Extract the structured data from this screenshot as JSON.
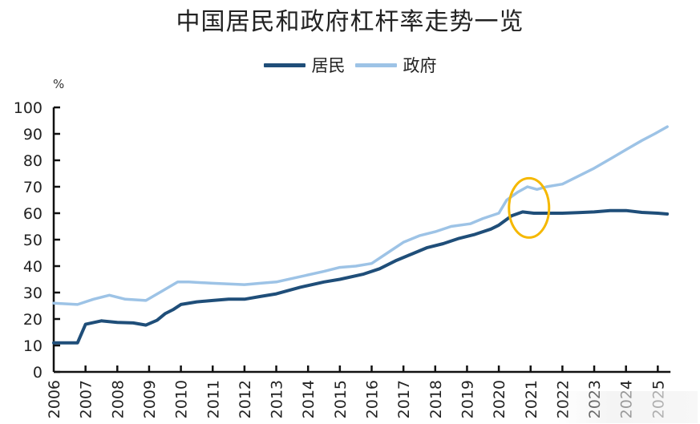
{
  "chart_data": {
    "type": "line",
    "title": "中国居民和政府杠杆率走势一览",
    "xlabel": "",
    "ylabel": "%",
    "ylim": [
      0,
      100
    ],
    "yticks": [
      0,
      10,
      20,
      30,
      40,
      50,
      60,
      70,
      80,
      90,
      100
    ],
    "xlim": [
      2006,
      2025.4
    ],
    "xticks": [
      "2006",
      "2007",
      "2008",
      "2009",
      "2010",
      "2011",
      "2012",
      "2013",
      "2014",
      "2015",
      "2016",
      "2017",
      "2018",
      "2019",
      "2020",
      "2021",
      "2022",
      "2023",
      "2024",
      "2025"
    ],
    "grid": false,
    "legend_position": "top-center",
    "series": [
      {
        "name": "居民",
        "color": "#1f4e79",
        "points": [
          [
            2006.0,
            11.0
          ],
          [
            2006.75,
            11.0
          ],
          [
            2007.0,
            18.0
          ],
          [
            2007.5,
            19.3
          ],
          [
            2008.0,
            18.7
          ],
          [
            2008.5,
            18.5
          ],
          [
            2008.9,
            17.7
          ],
          [
            2009.25,
            19.5
          ],
          [
            2009.5,
            22.0
          ],
          [
            2009.75,
            23.5
          ],
          [
            2010.0,
            25.5
          ],
          [
            2010.5,
            26.5
          ],
          [
            2011.0,
            27.0
          ],
          [
            2011.5,
            27.5
          ],
          [
            2012.0,
            27.5
          ],
          [
            2012.5,
            28.5
          ],
          [
            2013.0,
            29.5
          ],
          [
            2013.75,
            32.0
          ],
          [
            2014.5,
            34.0
          ],
          [
            2015.0,
            35.0
          ],
          [
            2015.75,
            37.0
          ],
          [
            2016.25,
            39.0
          ],
          [
            2016.75,
            42.0
          ],
          [
            2017.25,
            44.5
          ],
          [
            2017.75,
            47.0
          ],
          [
            2018.25,
            48.5
          ],
          [
            2018.75,
            50.5
          ],
          [
            2019.25,
            52.0
          ],
          [
            2019.75,
            54.0
          ],
          [
            2020.0,
            55.5
          ],
          [
            2020.4,
            59.0
          ],
          [
            2020.75,
            60.5
          ],
          [
            2021.1,
            60.0
          ],
          [
            2021.5,
            60.0
          ],
          [
            2022.0,
            60.0
          ],
          [
            2022.5,
            60.2
          ],
          [
            2023.0,
            60.5
          ],
          [
            2023.5,
            61.0
          ],
          [
            2024.0,
            61.0
          ],
          [
            2024.5,
            60.3
          ],
          [
            2025.0,
            60.0
          ],
          [
            2025.3,
            59.7
          ]
        ]
      },
      {
        "name": "政府",
        "color": "#9dc3e6",
        "points": [
          [
            2006.0,
            26.0
          ],
          [
            2006.75,
            25.5
          ],
          [
            2007.25,
            27.5
          ],
          [
            2007.75,
            29.0
          ],
          [
            2008.25,
            27.5
          ],
          [
            2008.9,
            27.0
          ],
          [
            2009.4,
            30.5
          ],
          [
            2009.9,
            34.0
          ],
          [
            2010.25,
            34.0
          ],
          [
            2011.0,
            33.5
          ],
          [
            2012.0,
            33.0
          ],
          [
            2012.5,
            33.5
          ],
          [
            2013.0,
            34.0
          ],
          [
            2013.75,
            36.0
          ],
          [
            2014.5,
            38.0
          ],
          [
            2015.0,
            39.5
          ],
          [
            2015.5,
            40.0
          ],
          [
            2016.0,
            41.0
          ],
          [
            2016.5,
            45.0
          ],
          [
            2017.0,
            49.0
          ],
          [
            2017.5,
            51.5
          ],
          [
            2018.0,
            53.0
          ],
          [
            2018.5,
            55.0
          ],
          [
            2019.1,
            56.0
          ],
          [
            2019.5,
            58.0
          ],
          [
            2020.0,
            60.0
          ],
          [
            2020.25,
            65.0
          ],
          [
            2020.6,
            68.0
          ],
          [
            2020.9,
            70.0
          ],
          [
            2021.2,
            69.0
          ],
          [
            2021.5,
            70.0
          ],
          [
            2022.0,
            71.0
          ],
          [
            2022.5,
            74.0
          ],
          [
            2023.0,
            77.0
          ],
          [
            2023.5,
            80.5
          ],
          [
            2024.0,
            84.0
          ],
          [
            2024.5,
            87.5
          ],
          [
            2024.9,
            90.0
          ],
          [
            2025.3,
            92.7
          ]
        ]
      }
    ],
    "annotations": [
      {
        "type": "ellipse",
        "color": "#f5b800",
        "center_x_year": 2020.95,
        "center_y_value": 62.0,
        "note": "highlight around 2020-2021 peak"
      }
    ]
  },
  "header": {
    "title": "中国居民和政府杠杆率走势一览"
  },
  "legend": {
    "items": [
      {
        "label": "居民",
        "color": "#1f4e79"
      },
      {
        "label": "政府",
        "color": "#9dc3e6"
      }
    ]
  },
  "axis": {
    "y_unit": "%"
  }
}
